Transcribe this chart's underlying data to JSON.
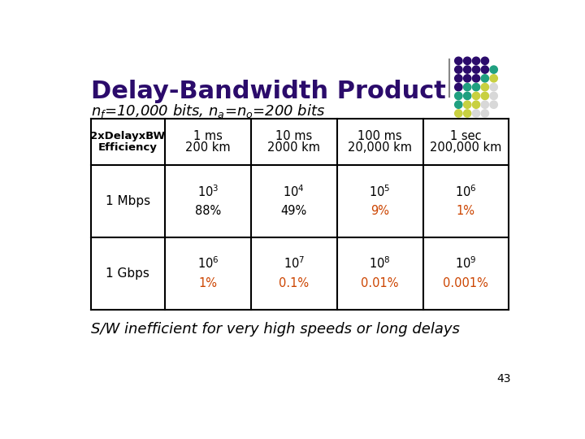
{
  "title": "Delay-Bandwidth Product",
  "title_color": "#2B0B6B",
  "subtitle_color": "#000000",
  "bg_color": "#FFFFFF",
  "orange_color": "#CC4400",
  "black_color": "#000000",
  "table": {
    "col_header_lines": [
      [
        "1 ms",
        "200 km"
      ],
      [
        "10 ms",
        "2000 km"
      ],
      [
        "100 ms",
        "20,000 km"
      ],
      [
        "1 sec",
        "200,000 km"
      ]
    ],
    "row_header_line1": "2xDelayxBW",
    "row_header_line2": "Efficiency",
    "rows": [
      {
        "label": "1 Mbps",
        "values_top": [
          "$10^3$",
          "$10^4$",
          "$10^5$",
          "$10^6$"
        ],
        "values_bot": [
          "88%",
          "49%",
          "9%",
          "1%"
        ],
        "colors_bot": [
          "#000000",
          "#000000",
          "#CC4400",
          "#CC4400"
        ]
      },
      {
        "label": "1 Gbps",
        "values_top": [
          "$10^6$",
          "$10^7$",
          "$10^8$",
          "$10^9$"
        ],
        "values_bot": [
          "1%",
          "0.1%",
          "0.01%",
          "0.001%"
        ],
        "colors_bot": [
          "#CC4400",
          "#CC4400",
          "#CC4400",
          "#CC4400"
        ]
      }
    ]
  },
  "footnote": "S/W inefficient for very high speeds or long delays",
  "page_number": "43",
  "dot_grid": {
    "pattern": [
      [
        "#2B0B6B",
        "#2B0B6B",
        "#2B0B6B",
        "#2B0B6B",
        "none"
      ],
      [
        "#2B0B6B",
        "#2B0B6B",
        "#2B0B6B",
        "#2B0B6B",
        "#20A080"
      ],
      [
        "#2B0B6B",
        "#2B0B6B",
        "#2B0B6B",
        "#20A080",
        "#C8D040"
      ],
      [
        "#2B0B6B",
        "#20A080",
        "#20A080",
        "#C8D040",
        "#D8D8D8"
      ],
      [
        "#20A080",
        "#20A080",
        "#C8D040",
        "#C8D040",
        "#D8D8D8"
      ],
      [
        "#20A080",
        "#C8D040",
        "#C8D040",
        "#D8D8D8",
        "#D8D8D8"
      ],
      [
        "#C8D040",
        "#C8D040",
        "#D8D8D8",
        "#D8D8D8",
        "none"
      ]
    ]
  }
}
